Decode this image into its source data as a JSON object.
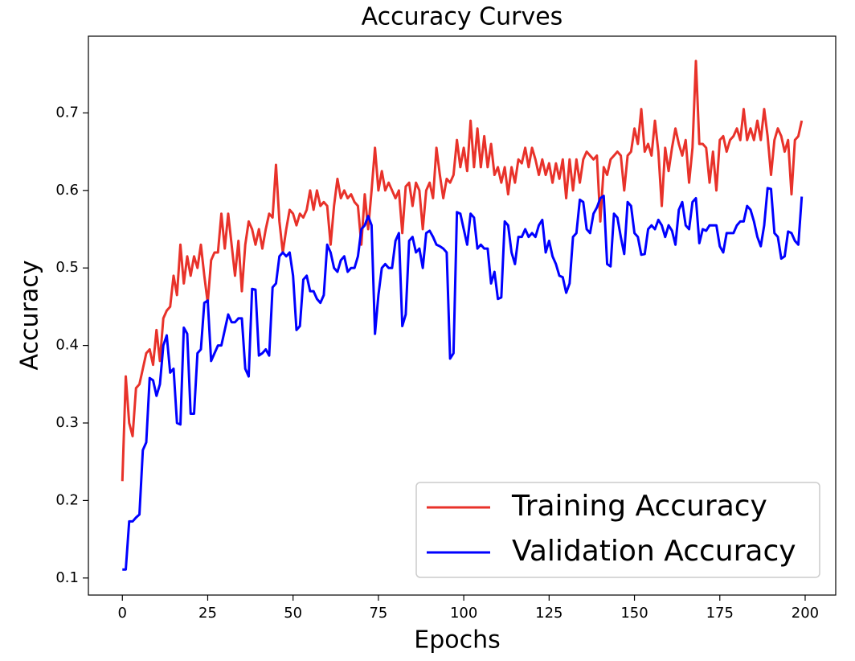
{
  "chart_data": {
    "type": "line",
    "title": "Accuracy Curves",
    "x_label": "Epochs",
    "y_label": "Accuracy",
    "x": [
      0,
      1,
      2,
      3,
      4,
      5,
      6,
      7,
      8,
      9,
      10,
      11,
      12,
      13,
      14,
      15,
      16,
      17,
      18,
      19,
      20,
      21,
      22,
      23,
      24,
      25,
      26,
      27,
      28,
      29,
      30,
      31,
      32,
      33,
      34,
      35,
      36,
      37,
      38,
      39,
      40,
      41,
      42,
      43,
      44,
      45,
      46,
      47,
      48,
      49,
      50,
      51,
      52,
      53,
      54,
      55,
      56,
      57,
      58,
      59,
      60,
      61,
      62,
      63,
      64,
      65,
      66,
      67,
      68,
      69,
      70,
      71,
      72,
      73,
      74,
      75,
      76,
      77,
      78,
      79,
      80,
      81,
      82,
      83,
      84,
      85,
      86,
      87,
      88,
      89,
      90,
      91,
      92,
      93,
      94,
      95,
      96,
      97,
      98,
      99,
      100,
      101,
      102,
      103,
      104,
      105,
      106,
      107,
      108,
      109,
      110,
      111,
      112,
      113,
      114,
      115,
      116,
      117,
      118,
      119,
      120,
      121,
      122,
      123,
      124,
      125,
      126,
      127,
      128,
      129,
      130,
      131,
      132,
      133,
      134,
      135,
      136,
      137,
      138,
      139,
      140,
      141,
      142,
      143,
      144,
      145,
      146,
      147,
      148,
      149,
      150,
      151,
      152,
      153,
      154,
      155,
      156,
      157,
      158,
      159,
      160,
      161,
      162,
      163,
      164,
      165,
      166,
      167,
      168,
      169,
      170,
      171,
      172,
      173,
      174,
      175,
      176,
      177,
      178,
      179,
      180,
      181,
      182,
      183,
      184,
      185,
      186,
      187,
      188,
      189,
      190,
      191,
      192,
      193,
      194,
      195,
      196,
      197,
      198,
      199
    ],
    "series": [
      {
        "name": "Training Accuracy",
        "color": "#e8322a",
        "values": [
          0.225,
          0.36,
          0.3,
          0.283,
          0.345,
          0.35,
          0.37,
          0.39,
          0.395,
          0.375,
          0.42,
          0.38,
          0.435,
          0.445,
          0.45,
          0.49,
          0.465,
          0.53,
          0.48,
          0.515,
          0.49,
          0.515,
          0.5,
          0.53,
          0.49,
          0.455,
          0.51,
          0.52,
          0.52,
          0.57,
          0.525,
          0.57,
          0.53,
          0.49,
          0.535,
          0.47,
          0.53,
          0.56,
          0.55,
          0.53,
          0.55,
          0.525,
          0.55,
          0.57,
          0.565,
          0.633,
          0.56,
          0.52,
          0.55,
          0.575,
          0.57,
          0.555,
          0.57,
          0.565,
          0.575,
          0.6,
          0.575,
          0.6,
          0.58,
          0.585,
          0.58,
          0.53,
          0.58,
          0.615,
          0.59,
          0.6,
          0.59,
          0.595,
          0.585,
          0.58,
          0.53,
          0.595,
          0.55,
          0.6,
          0.655,
          0.6,
          0.625,
          0.6,
          0.61,
          0.6,
          0.59,
          0.6,
          0.545,
          0.605,
          0.61,
          0.58,
          0.61,
          0.6,
          0.55,
          0.6,
          0.61,
          0.59,
          0.655,
          0.62,
          0.59,
          0.615,
          0.61,
          0.62,
          0.665,
          0.63,
          0.655,
          0.625,
          0.69,
          0.63,
          0.68,
          0.63,
          0.67,
          0.63,
          0.66,
          0.62,
          0.63,
          0.61,
          0.63,
          0.595,
          0.63,
          0.61,
          0.64,
          0.635,
          0.655,
          0.63,
          0.655,
          0.64,
          0.62,
          0.64,
          0.62,
          0.635,
          0.61,
          0.635,
          0.615,
          0.64,
          0.59,
          0.64,
          0.6,
          0.64,
          0.61,
          0.64,
          0.65,
          0.645,
          0.64,
          0.645,
          0.56,
          0.63,
          0.62,
          0.64,
          0.645,
          0.65,
          0.645,
          0.6,
          0.645,
          0.65,
          0.68,
          0.66,
          0.705,
          0.65,
          0.66,
          0.645,
          0.69,
          0.65,
          0.58,
          0.655,
          0.625,
          0.655,
          0.68,
          0.66,
          0.645,
          0.665,
          0.61,
          0.655,
          0.767,
          0.66,
          0.66,
          0.655,
          0.61,
          0.65,
          0.6,
          0.665,
          0.67,
          0.65,
          0.665,
          0.67,
          0.68,
          0.665,
          0.705,
          0.665,
          0.68,
          0.665,
          0.69,
          0.665,
          0.705,
          0.67,
          0.62,
          0.665,
          0.68,
          0.67,
          0.65,
          0.665,
          0.595,
          0.665,
          0.67,
          0.69
        ]
      },
      {
        "name": "Validation Accuracy",
        "color": "#0000ff",
        "values": [
          0.111,
          0.111,
          0.173,
          0.173,
          0.178,
          0.182,
          0.265,
          0.275,
          0.358,
          0.355,
          0.335,
          0.35,
          0.4,
          0.413,
          0.365,
          0.37,
          0.3,
          0.298,
          0.423,
          0.415,
          0.312,
          0.312,
          0.39,
          0.395,
          0.455,
          0.458,
          0.38,
          0.39,
          0.4,
          0.4,
          0.42,
          0.44,
          0.43,
          0.43,
          0.435,
          0.435,
          0.37,
          0.36,
          0.473,
          0.472,
          0.387,
          0.39,
          0.395,
          0.387,
          0.475,
          0.48,
          0.515,
          0.52,
          0.515,
          0.52,
          0.49,
          0.42,
          0.425,
          0.485,
          0.49,
          0.47,
          0.47,
          0.46,
          0.455,
          0.465,
          0.53,
          0.52,
          0.5,
          0.495,
          0.51,
          0.515,
          0.495,
          0.5,
          0.5,
          0.515,
          0.55,
          0.555,
          0.567,
          0.555,
          0.415,
          0.465,
          0.5,
          0.505,
          0.5,
          0.5,
          0.535,
          0.545,
          0.425,
          0.44,
          0.535,
          0.54,
          0.52,
          0.525,
          0.5,
          0.545,
          0.548,
          0.54,
          0.53,
          0.528,
          0.525,
          0.52,
          0.383,
          0.39,
          0.572,
          0.57,
          0.55,
          0.53,
          0.57,
          0.565,
          0.525,
          0.53,
          0.525,
          0.525,
          0.48,
          0.495,
          0.46,
          0.462,
          0.56,
          0.555,
          0.52,
          0.505,
          0.54,
          0.54,
          0.55,
          0.54,
          0.545,
          0.54,
          0.555,
          0.562,
          0.52,
          0.535,
          0.515,
          0.505,
          0.49,
          0.488,
          0.468,
          0.48,
          0.54,
          0.545,
          0.588,
          0.585,
          0.55,
          0.545,
          0.57,
          0.578,
          0.59,
          0.593,
          0.505,
          0.502,
          0.57,
          0.565,
          0.54,
          0.518,
          0.585,
          0.58,
          0.545,
          0.54,
          0.517,
          0.518,
          0.55,
          0.555,
          0.55,
          0.562,
          0.555,
          0.54,
          0.555,
          0.548,
          0.53,
          0.575,
          0.585,
          0.555,
          0.55,
          0.585,
          0.59,
          0.532,
          0.55,
          0.548,
          0.555,
          0.555,
          0.555,
          0.528,
          0.52,
          0.545,
          0.545,
          0.545,
          0.555,
          0.56,
          0.56,
          0.58,
          0.575,
          0.56,
          0.54,
          0.528,
          0.555,
          0.603,
          0.602,
          0.545,
          0.54,
          0.512,
          0.515,
          0.547,
          0.545,
          0.535,
          0.53,
          0.592
        ]
      }
    ],
    "xlim": [
      -9.95,
      208.95
    ],
    "xticks": [
      0,
      25,
      50,
      75,
      100,
      125,
      150,
      175,
      200
    ],
    "ylim": [
      0.078,
      0.799
    ],
    "yticks": [
      0.1,
      0.2,
      0.3,
      0.4,
      0.5,
      0.6,
      0.7
    ],
    "grid": false,
    "legend": "lower right"
  }
}
